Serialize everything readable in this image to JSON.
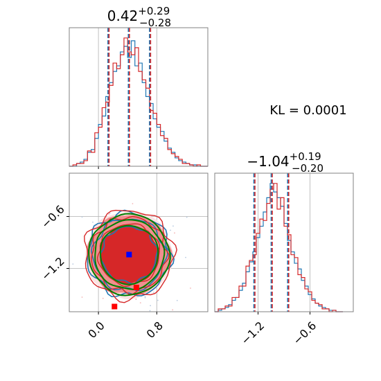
{
  "chart_data": {
    "type": "corner",
    "kl_label": "KL = 0.0001",
    "colors": {
      "series_a": "#1f77b4",
      "series_b": "#d62728",
      "contour_green": "#008000",
      "marker_blue": "#0000ff",
      "marker_red": "#ff0000"
    },
    "panels": [
      {
        "id": "marginal-x",
        "type": "step-histogram",
        "title": {
          "value": "0.42",
          "plus": "+0.29",
          "minus": "−0.28"
        },
        "xlim": [
          -0.4,
          1.5
        ],
        "quantiles": [
          0.14,
          0.42,
          0.71
        ],
        "grid": true,
        "bins": [
          -0.4,
          -0.35,
          -0.3,
          -0.25,
          -0.2,
          -0.15,
          -0.1,
          -0.05,
          0.0,
          0.05,
          0.1,
          0.15,
          0.2,
          0.25,
          0.3,
          0.35,
          0.4,
          0.45,
          0.5,
          0.55,
          0.6,
          0.65,
          0.7,
          0.75,
          0.8,
          0.85,
          0.9,
          0.95,
          1.0,
          1.05,
          1.1,
          1.15,
          1.2,
          1.25,
          1.3,
          1.35,
          1.4,
          1.45
        ],
        "series": [
          {
            "name": "series-a",
            "color": "#1f77b4",
            "values": [
              0,
              0,
              0.02,
              0.03,
              0.05,
              0.1,
              0.12,
              0.2,
              0.3,
              0.36,
              0.5,
              0.6,
              0.68,
              0.72,
              0.82,
              0.86,
              0.78,
              0.9,
              0.72,
              0.74,
              0.6,
              0.5,
              0.45,
              0.34,
              0.28,
              0.25,
              0.18,
              0.13,
              0.1,
              0.06,
              0.04,
              0.03,
              0.02,
              0.01,
              0.01,
              0,
              0,
              0
            ]
          },
          {
            "name": "series-b",
            "color": "#d62728",
            "values": [
              0,
              0.01,
              0.02,
              0.02,
              0.04,
              0.11,
              0.1,
              0.24,
              0.28,
              0.42,
              0.46,
              0.58,
              0.74,
              0.7,
              0.8,
              0.92,
              0.82,
              0.8,
              0.85,
              0.68,
              0.62,
              0.56,
              0.4,
              0.38,
              0.3,
              0.22,
              0.2,
              0.12,
              0.09,
              0.07,
              0.05,
              0.02,
              0.02,
              0.01,
              0,
              0.01,
              0,
              0
            ]
          }
        ]
      },
      {
        "id": "joint",
        "type": "contour",
        "xlim": [
          -0.4,
          1.5
        ],
        "ylim": [
          -1.7,
          -0.1
        ],
        "grid": true,
        "x_ticks": [
          "0.0",
          "0.8"
        ],
        "y_ticks": [
          "−0.6",
          "−1.2"
        ],
        "x_tick_values": [
          0.0,
          0.8
        ],
        "y_tick_values": [
          -0.6,
          -1.2
        ],
        "center": [
          0.42,
          -1.04
        ],
        "markers": [
          {
            "name": "blue-square",
            "x": 0.42,
            "y": -1.04,
            "color": "#0000ff"
          },
          {
            "name": "red-square-1",
            "x": 0.52,
            "y": -1.42,
            "color": "#ff0000"
          },
          {
            "name": "red-square-2",
            "x": 0.22,
            "y": -1.64,
            "color": "#ff0000"
          }
        ]
      },
      {
        "id": "marginal-y",
        "type": "step-histogram",
        "title": {
          "value": "−1.04",
          "plus": "+0.19",
          "minus": "−0.20"
        },
        "xlim": [
          -1.7,
          -0.1
        ],
        "x_ticks": [
          "−1.2",
          "−0.6"
        ],
        "x_tick_values": [
          -1.2,
          -0.6
        ],
        "quantiles": [
          -1.24,
          -1.04,
          -0.85
        ],
        "grid": true,
        "bins": [
          -1.7,
          -1.66,
          -1.62,
          -1.58,
          -1.54,
          -1.5,
          -1.46,
          -1.42,
          -1.38,
          -1.34,
          -1.3,
          -1.26,
          -1.22,
          -1.18,
          -1.14,
          -1.1,
          -1.06,
          -1.02,
          -0.98,
          -0.94,
          -0.9,
          -0.86,
          -0.82,
          -0.78,
          -0.74,
          -0.7,
          -0.66,
          -0.62,
          -0.58,
          -0.54,
          -0.5,
          -0.46,
          -0.42,
          -0.38,
          -0.34,
          -0.3,
          -0.26
        ],
        "series": [
          {
            "name": "series-a",
            "color": "#1f77b4",
            "values": [
              0,
              0.01,
              0.02,
              0.03,
              0.05,
              0.08,
              0.1,
              0.15,
              0.2,
              0.28,
              0.35,
              0.42,
              0.52,
              0.6,
              0.7,
              0.8,
              0.9,
              0.84,
              0.8,
              0.74,
              0.62,
              0.5,
              0.42,
              0.34,
              0.3,
              0.22,
              0.18,
              0.12,
              0.09,
              0.06,
              0.04,
              0.03,
              0.02,
              0.01,
              0.01,
              0,
              0
            ]
          },
          {
            "name": "series-b",
            "color": "#d62728",
            "values": [
              0,
              0.02,
              0.02,
              0.04,
              0.04,
              0.1,
              0.1,
              0.18,
              0.18,
              0.32,
              0.36,
              0.4,
              0.55,
              0.65,
              0.64,
              0.76,
              0.86,
              0.9,
              0.72,
              0.8,
              0.6,
              0.54,
              0.4,
              0.38,
              0.26,
              0.24,
              0.16,
              0.14,
              0.08,
              0.06,
              0.05,
              0.02,
              0.02,
              0,
              0.01,
              0,
              0
            ]
          }
        ]
      }
    ]
  }
}
